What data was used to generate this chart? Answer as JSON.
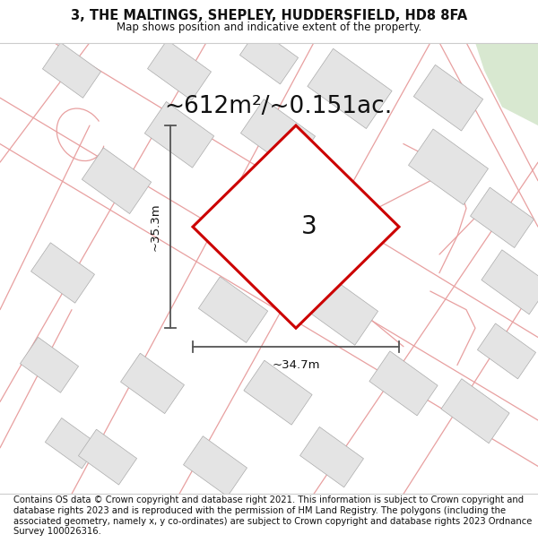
{
  "title_line1": "3, THE MALTINGS, SHEPLEY, HUDDERSFIELD, HD8 8FA",
  "title_line2": "Map shows position and indicative extent of the property.",
  "area_text": "~612m²/~0.151ac.",
  "label": "3",
  "dim_width": "~34.7m",
  "dim_height": "~35.3m",
  "footer_text": "Contains OS data © Crown copyright and database right 2021. This information is subject to Crown copyright and database rights 2023 and is reproduced with the permission of HM Land Registry. The polygons (including the associated geometry, namely x, y co-ordinates) are subject to Crown copyright and database rights 2023 Ordnance Survey 100026316.",
  "map_bg": "#f7f6f4",
  "building_fill": "#e4e4e4",
  "building_edge": "#aaaaaa",
  "plot_outline_color": "#cc0000",
  "plot_fill_color": "#ffffff",
  "road_line_color": "#e8a0a0",
  "dim_line_color": "#555555",
  "title_fontsize": 10.5,
  "area_fontsize": 19,
  "label_fontsize": 20,
  "dim_fontsize": 9.5,
  "footer_fontsize": 7.2,
  "green_area_color": "#d8e8d0"
}
